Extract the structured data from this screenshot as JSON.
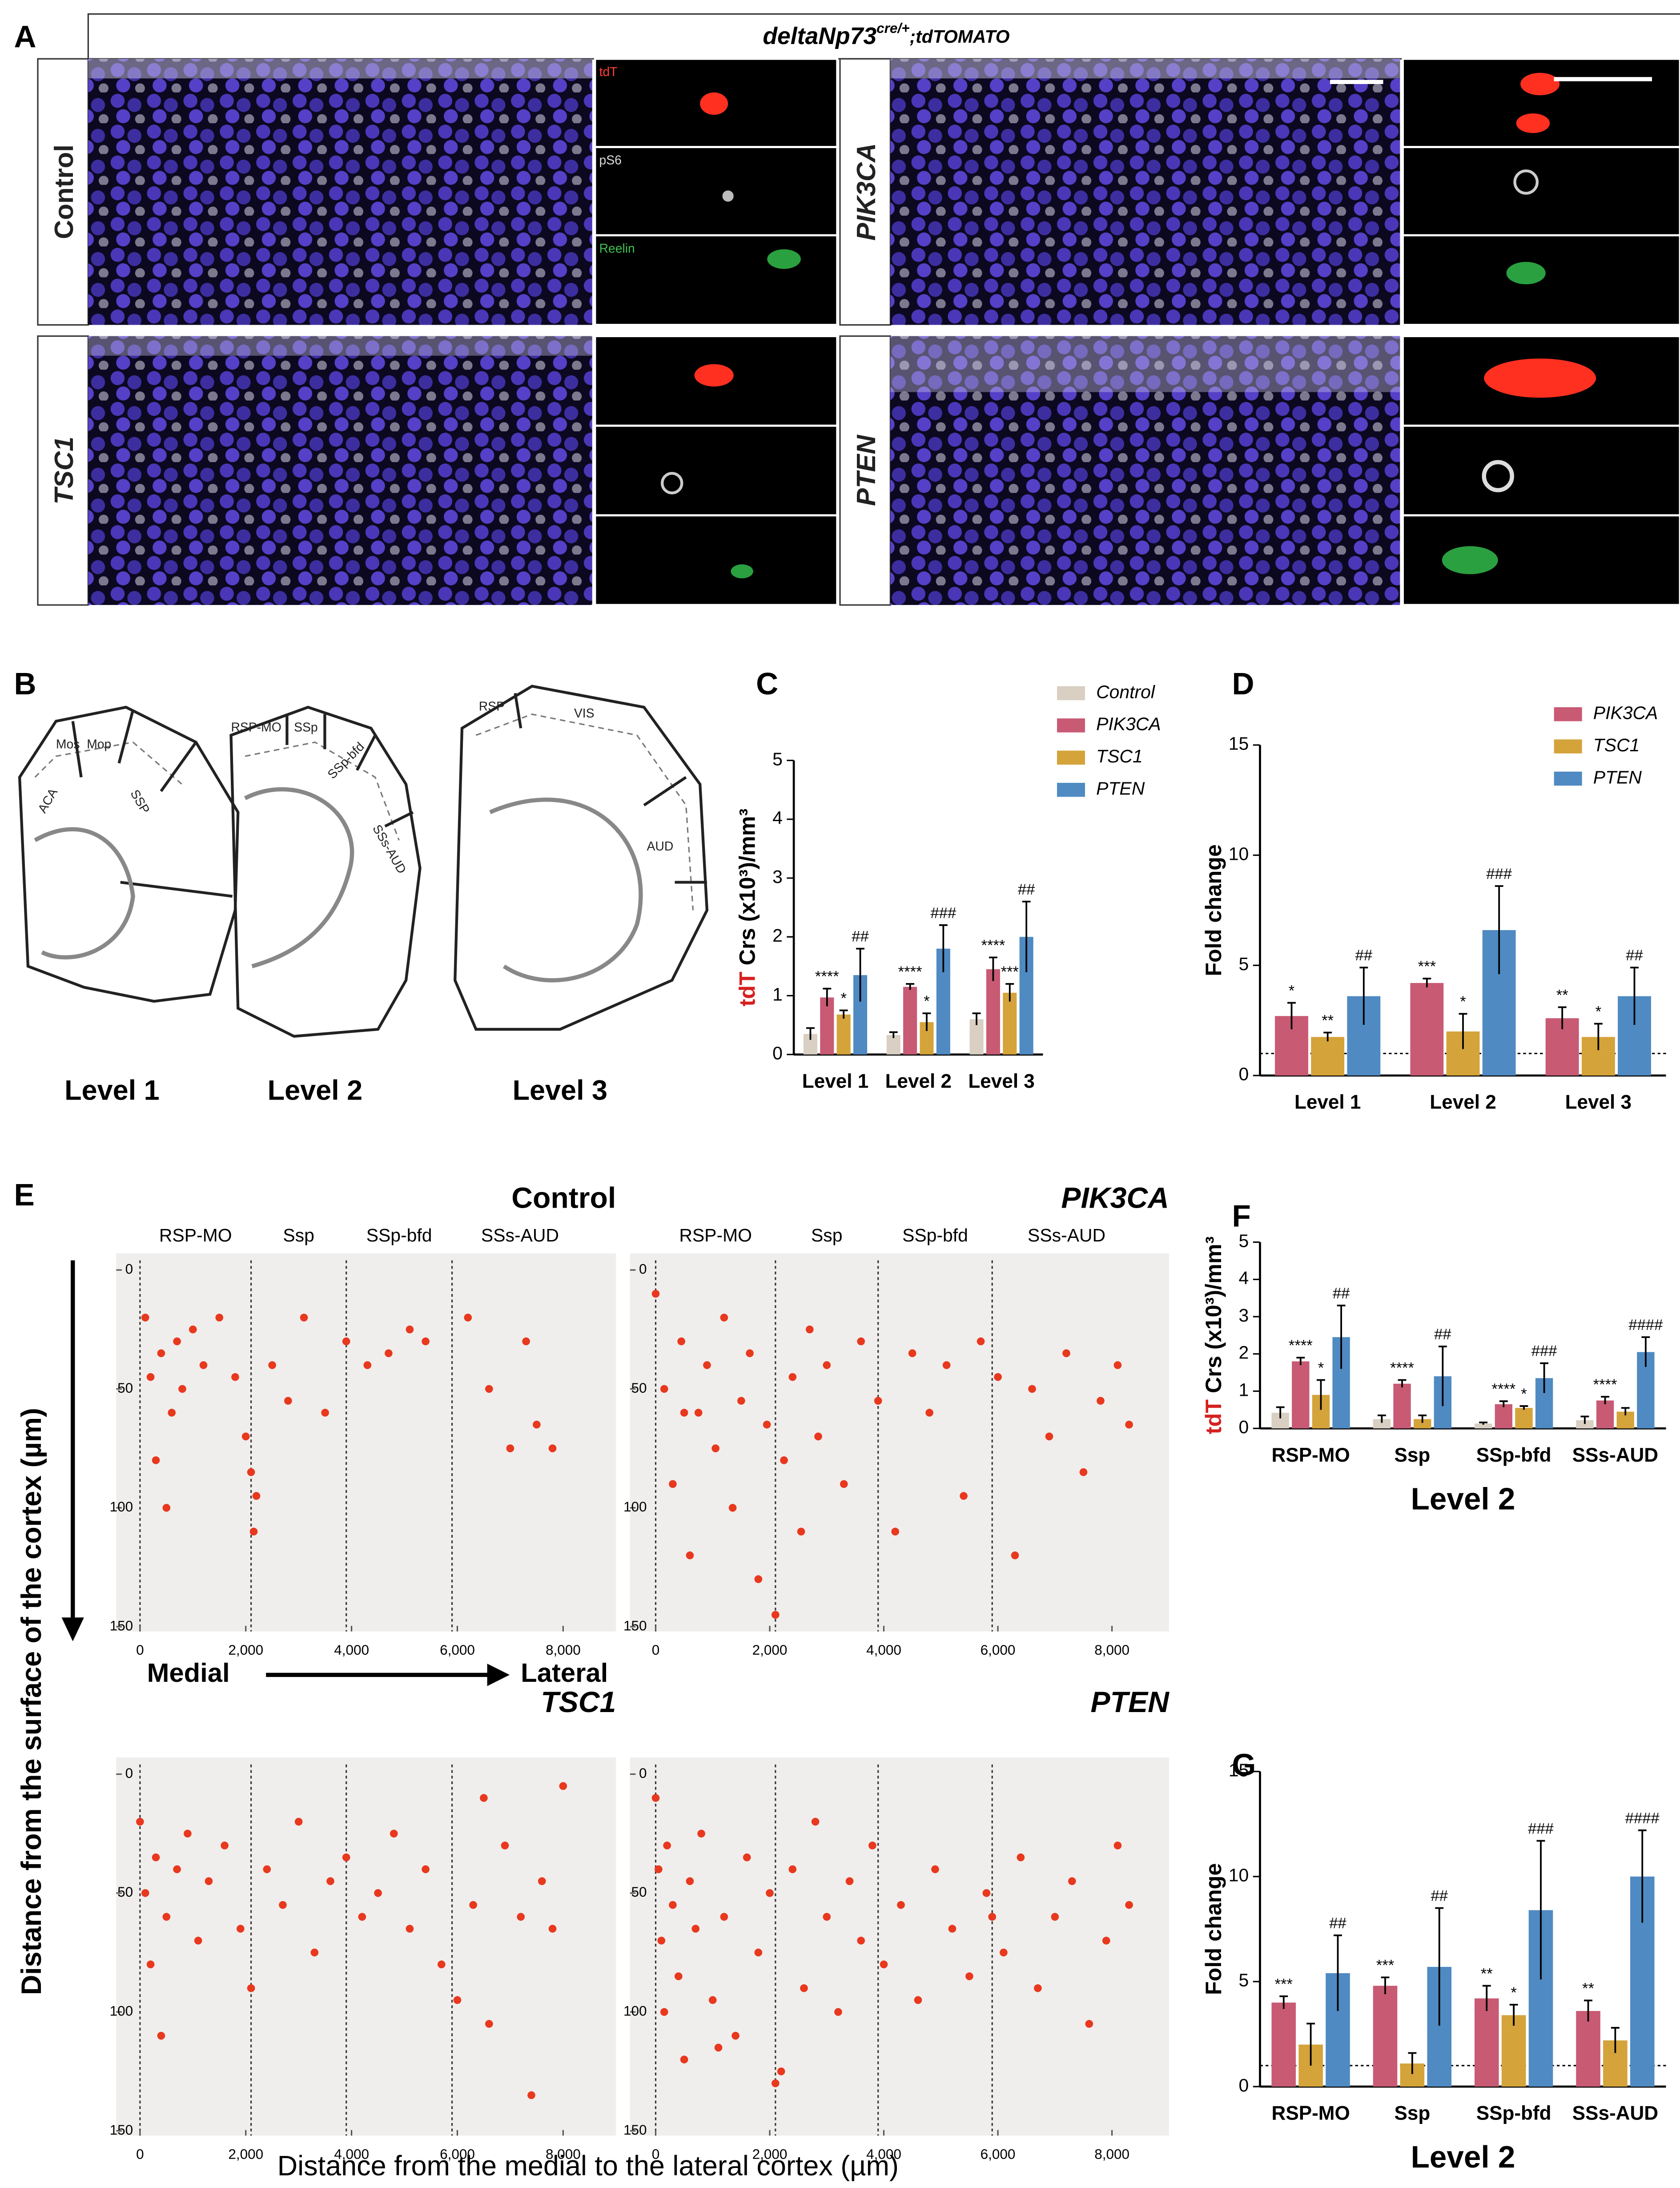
{
  "panel_labels": [
    "A",
    "B",
    "C",
    "D",
    "E",
    "F",
    "G"
  ],
  "panel_a": {
    "title": "deltaNp73",
    "title_sup": "cre/+",
    "title_suffix": ";tdTOMATO",
    "conditions": [
      "Control",
      "PIK3CA",
      "TSC1",
      "PTEN"
    ],
    "channels": [
      "tdT",
      "pS6",
      "Reelin"
    ]
  },
  "panel_b": {
    "levels": [
      "Level 1",
      "Level 2",
      "Level 3"
    ],
    "regions": [
      [
        "Mos",
        "Mop",
        "ACA",
        "SSP"
      ],
      [
        "RSP-MO",
        "SSp",
        "SSp-bfd",
        "SSs-AUD"
      ],
      [
        "RSP",
        "VIS",
        "AUD"
      ]
    ]
  },
  "panel_e": {
    "y_label": "Distance from the surface of the cortex (µm)",
    "x_label": "Distance from the medial to the lateral cortex (µm)",
    "medial": "Medial",
    "lateral": "Lateral"
  },
  "chart_data": [
    {
      "type": "bar",
      "y_label_highlight": "tdT",
      "y_label": " Crs (x10³)/mm³",
      "categories": [
        "Level 1",
        "Level 2",
        "Level 3"
      ],
      "ylim": [
        0,
        5
      ],
      "yticks": [
        0,
        1,
        2,
        3,
        4,
        5
      ],
      "legend": true,
      "series": [
        {
          "name": "Control",
          "color": "#d9cfc2",
          "values": [
            0.35,
            0.33,
            0.6
          ],
          "errors": [
            0.1,
            0.05,
            0.1
          ]
        },
        {
          "name": "PIK3CA",
          "color": "#c85a74",
          "values": [
            0.97,
            1.15,
            1.45
          ],
          "errors": [
            0.15,
            0.05,
            0.2
          ],
          "sig": [
            "****",
            "****",
            "****"
          ]
        },
        {
          "name": "TSC1",
          "color": "#d4a33a",
          "values": [
            0.68,
            0.55,
            1.05
          ],
          "errors": [
            0.07,
            0.15,
            0.15
          ],
          "sig": [
            "*",
            "*",
            "***"
          ]
        },
        {
          "name": "PTEN",
          "color": "#4f8ac2",
          "values": [
            1.35,
            1.8,
            2.0
          ],
          "errors": [
            0.45,
            0.4,
            0.6
          ],
          "sig": [
            "##",
            "###",
            "##"
          ]
        }
      ]
    },
    {
      "type": "bar",
      "y_label": "Fold change",
      "categories": [
        "Level 1",
        "Level 2",
        "Level 3"
      ],
      "ylim": [
        0,
        15
      ],
      "yticks": [
        0,
        5,
        10,
        15
      ],
      "legend": true,
      "reference_line": 1,
      "series": [
        {
          "name": "PIK3CA",
          "color": "#c85a74",
          "values": [
            2.7,
            4.2,
            2.6
          ],
          "errors": [
            0.6,
            0.2,
            0.5
          ],
          "sig": [
            "*",
            "***",
            "**"
          ]
        },
        {
          "name": "TSC1",
          "color": "#d4a33a",
          "values": [
            1.75,
            2.0,
            1.75
          ],
          "errors": [
            0.2,
            0.8,
            0.6
          ],
          "sig": [
            "**",
            "*",
            "*"
          ]
        },
        {
          "name": "PTEN",
          "color": "#4f8ac2",
          "values": [
            3.6,
            6.6,
            3.6
          ],
          "errors": [
            1.3,
            2.0,
            1.3
          ],
          "sig": [
            "##",
            "###",
            "##"
          ]
        }
      ]
    },
    {
      "type": "scatter",
      "title": "Control",
      "title_italic": false,
      "color": "#e8381e",
      "xlim": [
        -450,
        9000
      ],
      "ylim": [
        -7,
        152
      ],
      "y_inverted": true,
      "xticks": [
        0,
        {
          "value": 2000,
          "label": "2,000"
        },
        {
          "value": 4000,
          "label": "4,000"
        },
        {
          "value": 6000,
          "label": "6,000"
        },
        {
          "value": 8000,
          "label": "8,000"
        }
      ],
      "yticks": [
        0,
        50,
        100,
        150
      ],
      "regions": [
        "RSP-MO",
        "Ssp",
        "SSp-bfd",
        "SSs-AUD"
      ],
      "region_starts": [
        0,
        2100,
        3900,
        5900
      ],
      "x": [
        100,
        200,
        300,
        400,
        500,
        600,
        700,
        800,
        1000,
        1200,
        1500,
        1800,
        2000,
        2100,
        2150,
        2200,
        2500,
        2800,
        3100,
        3500,
        3900,
        4300,
        4700,
        5100,
        5400,
        6200,
        6600,
        7000,
        7300,
        7500,
        7800
      ],
      "y": [
        20,
        45,
        80,
        35,
        100,
        60,
        30,
        50,
        25,
        40,
        20,
        45,
        70,
        85,
        110,
        95,
        40,
        55,
        20,
        60,
        30,
        40,
        35,
        25,
        30,
        20,
        50,
        75,
        30,
        65,
        75
      ]
    },
    {
      "type": "scatter",
      "title": "PIK3CA",
      "title_italic": true,
      "color": "#e8381e",
      "xlim": [
        -450,
        9000
      ],
      "ylim": [
        -7,
        152
      ],
      "y_inverted": true,
      "xticks": [
        0,
        {
          "value": 2000,
          "label": "2,000"
        },
        {
          "value": 4000,
          "label": "4,000"
        },
        {
          "value": 6000,
          "label": "6,000"
        },
        {
          "value": 8000,
          "label": "8,000"
        }
      ],
      "yticks": [
        0,
        50,
        100,
        150
      ],
      "regions": [
        "RSP-MO",
        "Ssp",
        "SSp-bfd",
        "SSs-AUD"
      ],
      "region_starts": [
        0,
        2100,
        3900,
        5900
      ],
      "x": [
        0,
        150,
        300,
        450,
        600,
        750,
        900,
        1050,
        1200,
        1350,
        1500,
        1650,
        1800,
        1950,
        2100,
        2250,
        2400,
        2550,
        2700,
        2850,
        3000,
        3300,
        3600,
        3900,
        4200,
        4500,
        4800,
        5100,
        5400,
        5700,
        6000,
        6300,
        6600,
        6900,
        7200,
        7500,
        7800,
        8100,
        8300,
        500
      ],
      "y": [
        10,
        50,
        90,
        30,
        120,
        60,
        40,
        75,
        20,
        100,
        55,
        35,
        130,
        65,
        145,
        80,
        45,
        110,
        25,
        70,
        40,
        90,
        30,
        55,
        110,
        35,
        60,
        40,
        95,
        30,
        45,
        120,
        50,
        70,
        35,
        85,
        55,
        40,
        65,
        60
      ]
    },
    {
      "type": "scatter",
      "title": "TSC1",
      "title_italic": true,
      "color": "#e8381e",
      "xlim": [
        -450,
        9000
      ],
      "ylim": [
        -7,
        152
      ],
      "y_inverted": true,
      "xticks": [
        0,
        {
          "value": 2000,
          "label": "2,000"
        },
        {
          "value": 4000,
          "label": "4,000"
        },
        {
          "value": 6000,
          "label": "6,000"
        },
        {
          "value": 8000,
          "label": "8,000"
        }
      ],
      "yticks": [
        0,
        50,
        100,
        150
      ],
      "region_starts": [
        0,
        2100,
        3900,
        5900
      ],
      "x": [
        0,
        100,
        200,
        300,
        400,
        500,
        700,
        900,
        1100,
        1300,
        1600,
        1900,
        2100,
        2400,
        2700,
        3000,
        3300,
        3600,
        3900,
        4200,
        4500,
        4800,
        5100,
        5400,
        5700,
        6000,
        6300,
        6600,
        6900,
        7200,
        7400,
        7600,
        7800,
        8000,
        6500
      ],
      "y": [
        20,
        50,
        80,
        35,
        110,
        60,
        40,
        25,
        70,
        45,
        30,
        65,
        90,
        40,
        55,
        20,
        75,
        45,
        35,
        60,
        50,
        25,
        65,
        40,
        80,
        95,
        55,
        105,
        30,
        60,
        135,
        45,
        65,
        5,
        10
      ]
    },
    {
      "type": "scatter",
      "title": "PTEN",
      "title_italic": true,
      "color": "#e8381e",
      "xlim": [
        -450,
        9000
      ],
      "ylim": [
        -7,
        152
      ],
      "y_inverted": true,
      "xticks": [
        0,
        {
          "value": 2000,
          "label": "2,000"
        },
        {
          "value": 4000,
          "label": "4,000"
        },
        {
          "value": 6000,
          "label": "6,000"
        },
        {
          "value": 8000,
          "label": "8,000"
        }
      ],
      "yticks": [
        0,
        50,
        100,
        150
      ],
      "region_starts": [
        0,
        2100,
        3900,
        5900
      ],
      "x": [
        0,
        50,
        100,
        150,
        200,
        300,
        400,
        500,
        600,
        700,
        800,
        1000,
        1200,
        1400,
        1600,
        1800,
        2000,
        2200,
        2400,
        2600,
        2800,
        3000,
        3200,
        3400,
        3600,
        3800,
        4000,
        4300,
        4600,
        4900,
        5200,
        5500,
        5800,
        6100,
        6400,
        6700,
        7000,
        7300,
        7600,
        7900,
        8100,
        8300,
        1100,
        2100,
        5900
      ],
      "y": [
        10,
        40,
        70,
        100,
        30,
        55,
        85,
        120,
        45,
        65,
        25,
        95,
        60,
        110,
        35,
        75,
        50,
        125,
        40,
        90,
        20,
        60,
        100,
        45,
        70,
        30,
        80,
        55,
        95,
        40,
        65,
        85,
        50,
        75,
        35,
        90,
        60,
        45,
        105,
        70,
        30,
        55,
        115,
        130,
        60
      ]
    },
    {
      "type": "bar",
      "y_label_highlight": "tdT",
      "y_label": " Crs (x10³)/mm³",
      "x_title": "Level 2",
      "categories": [
        "RSP-MO",
        "Ssp",
        "SSp-bfd",
        "SSs-AUD"
      ],
      "ylim": [
        0,
        5
      ],
      "yticks": [
        0,
        1,
        2,
        3,
        4,
        5
      ],
      "legend": false,
      "series": [
        {
          "name": "Control",
          "color": "#d9cfc2",
          "values": [
            0.42,
            0.25,
            0.13,
            0.22
          ],
          "errors": [
            0.15,
            0.1,
            0.03,
            0.1
          ]
        },
        {
          "name": "PIK3CA",
          "color": "#c85a74",
          "values": [
            1.8,
            1.2,
            0.65,
            0.75
          ],
          "errors": [
            0.1,
            0.1,
            0.08,
            0.1
          ],
          "sig": [
            "****",
            "****",
            "****",
            "****"
          ]
        },
        {
          "name": "TSC1",
          "color": "#d4a33a",
          "values": [
            0.9,
            0.25,
            0.55,
            0.45
          ],
          "errors": [
            0.4,
            0.1,
            0.05,
            0.1
          ],
          "sig": [
            "*",
            null,
            "*",
            null
          ]
        },
        {
          "name": "PTEN",
          "color": "#4f8ac2",
          "values": [
            2.45,
            1.4,
            1.35,
            2.05
          ],
          "errors": [
            0.85,
            0.8,
            0.4,
            0.4
          ],
          "sig": [
            "##",
            "##",
            "###",
            "####"
          ]
        }
      ]
    },
    {
      "type": "bar",
      "y_label": "Fold change",
      "x_title": "Level 2",
      "categories": [
        "RSP-MO",
        "Ssp",
        "SSp-bfd",
        "SSs-AUD"
      ],
      "ylim": [
        0,
        15
      ],
      "yticks": [
        0,
        5,
        10,
        15
      ],
      "legend": false,
      "reference_line": 1,
      "series": [
        {
          "name": "PIK3CA",
          "color": "#c85a74",
          "values": [
            4.0,
            4.8,
            4.2,
            3.6
          ],
          "errors": [
            0.3,
            0.4,
            0.6,
            0.5
          ],
          "sig": [
            "***",
            "***",
            "**",
            "**"
          ]
        },
        {
          "name": "TSC1",
          "color": "#d4a33a",
          "values": [
            2.0,
            1.1,
            3.4,
            2.2
          ],
          "errors": [
            1.0,
            0.5,
            0.5,
            0.6
          ],
          "sig": [
            null,
            null,
            "*",
            null
          ]
        },
        {
          "name": "PTEN",
          "color": "#4f8ac2",
          "values": [
            5.4,
            5.7,
            8.4,
            10.0
          ],
          "errors": [
            1.8,
            2.8,
            3.3,
            2.2
          ],
          "sig": [
            "##",
            "##",
            "###",
            "####"
          ]
        }
      ]
    }
  ]
}
